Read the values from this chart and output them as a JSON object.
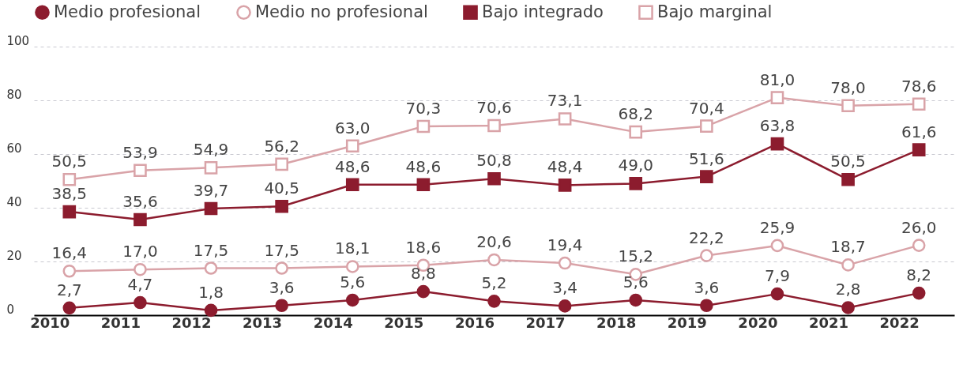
{
  "chart_data": {
    "type": "line",
    "categories": [
      "2010",
      "2011",
      "2012",
      "2013",
      "2014",
      "2015",
      "2016",
      "2017",
      "2018",
      "2019",
      "2020",
      "2021",
      "2022"
    ],
    "series": [
      {
        "name": "Medio profesional",
        "color": "#8c1c2e",
        "marker": "circle",
        "line_style": "solid",
        "values": [
          2.7,
          4.7,
          1.8,
          3.6,
          5.6,
          8.8,
          5.2,
          3.4,
          5.6,
          3.6,
          7.9,
          2.8,
          8.2
        ],
        "value_labels": [
          "2,7",
          "4,7",
          "1,8",
          "3,6",
          "5,6",
          "8,8",
          "5,2",
          "3,4",
          "5,6",
          "3,6",
          "7,9",
          "2,8",
          "8,2"
        ]
      },
      {
        "name": "Medio no profesional",
        "color": "#d9a3a8",
        "marker": "circle",
        "line_style": "solid",
        "values": [
          16.4,
          17.0,
          17.5,
          17.5,
          18.1,
          18.6,
          20.6,
          19.4,
          15.2,
          22.2,
          25.9,
          18.7,
          26.0
        ],
        "value_labels": [
          "16,4",
          "17,0",
          "17,5",
          "17,5",
          "18,1",
          "18,6",
          "20,6",
          "19,4",
          "15,2",
          "22,2",
          "25,9",
          "18,7",
          "26,0"
        ]
      },
      {
        "name": "Bajo integrado",
        "color": "#8c1c2e",
        "marker": "square",
        "line_style": "solid",
        "values": [
          38.5,
          35.6,
          39.7,
          40.5,
          48.6,
          48.6,
          50.8,
          48.4,
          49.0,
          51.6,
          63.8,
          50.5,
          61.6
        ],
        "value_labels": [
          "38,5",
          "35,6",
          "39,7",
          "40,5",
          "48,6",
          "48,6",
          "50,8",
          "48,4",
          "49,0",
          "51,6",
          "63,8",
          "50,5",
          "61,6"
        ]
      },
      {
        "name": "Bajo marginal",
        "color": "#d9a3a8",
        "marker": "square",
        "line_style": "solid",
        "values": [
          50.5,
          53.9,
          54.9,
          56.2,
          63.0,
          70.3,
          70.6,
          73.1,
          68.2,
          70.4,
          81.0,
          78.0,
          78.6
        ],
        "value_labels": [
          "50,5",
          "53,9",
          "54,9",
          "56,2",
          "63,0",
          "70,3",
          "70,6",
          "73,1",
          "68,2",
          "70,4",
          "81,0",
          "78,0",
          "78,6"
        ]
      }
    ],
    "ylim": [
      0,
      100
    ],
    "yticks": [
      0,
      20,
      40,
      60,
      80,
      100
    ],
    "grid": "y",
    "legend": "top left"
  }
}
